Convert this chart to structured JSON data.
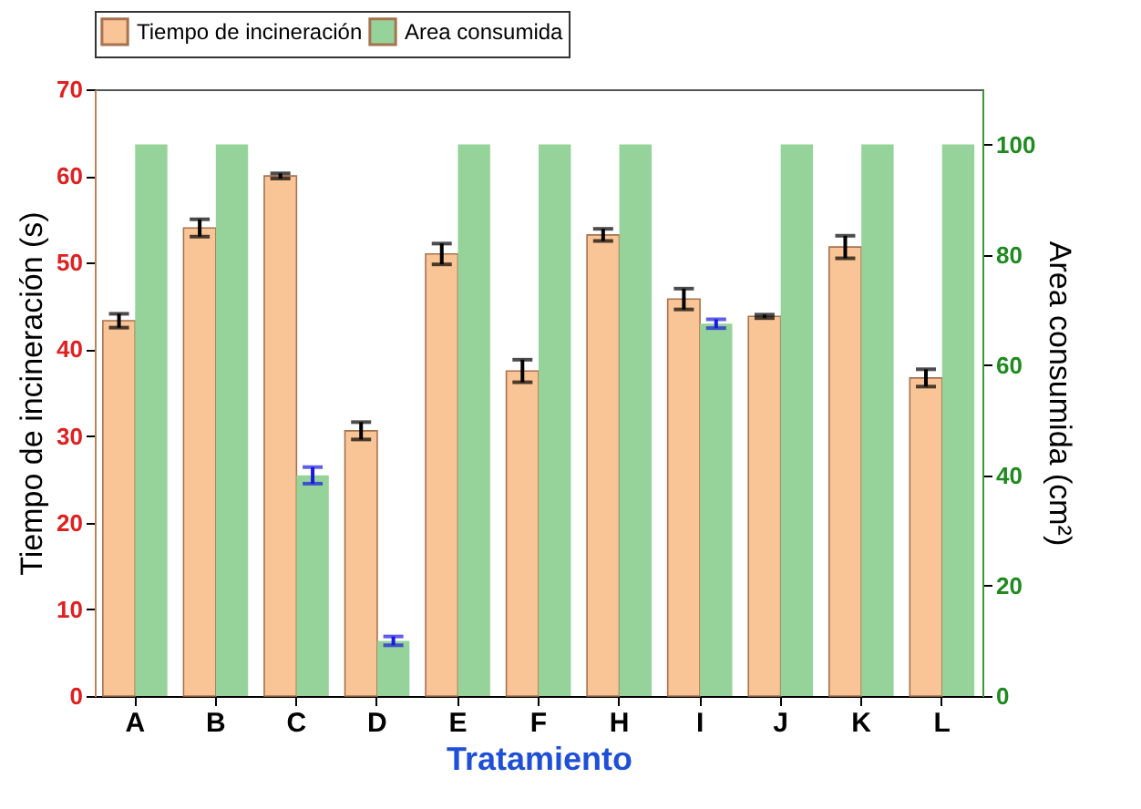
{
  "chart_data": {
    "type": "bar",
    "xlabel": "Tratamiento",
    "ylabel": "Tiempo de incineración (s)",
    "y2label": "Area consumida (cm²)",
    "categories": [
      "A",
      "B",
      "C",
      "D",
      "E",
      "F",
      "H",
      "I",
      "J",
      "K",
      "L"
    ],
    "series": [
      {
        "name": "Tiempo de incineración",
        "color": "#f9c596",
        "values": [
          43.3,
          54,
          60,
          30.6,
          51,
          37.5,
          53.2,
          45.8,
          43.8,
          51.8,
          36.7
        ],
        "errors": [
          0.8,
          1,
          0.3,
          1,
          1.2,
          1.3,
          0.7,
          1.2,
          0.2,
          1.3,
          1
        ]
      },
      {
        "name": "Area consumida",
        "color": "#96d39a",
        "axis": "y2",
        "values": [
          100,
          100,
          40,
          10,
          100,
          100,
          100,
          67.5,
          100,
          100,
          100
        ],
        "errors": [
          null,
          null,
          1.5,
          0.8,
          null,
          null,
          null,
          0.8,
          null,
          null,
          null
        ]
      }
    ],
    "ylim": [
      0,
      70
    ],
    "yticks": [
      0,
      10,
      20,
      30,
      40,
      50,
      60,
      70
    ],
    "y2lim": [
      0,
      110
    ],
    "y2ticks": [
      0,
      20,
      40,
      60,
      80,
      100
    ],
    "grid": false,
    "legend": "top"
  }
}
